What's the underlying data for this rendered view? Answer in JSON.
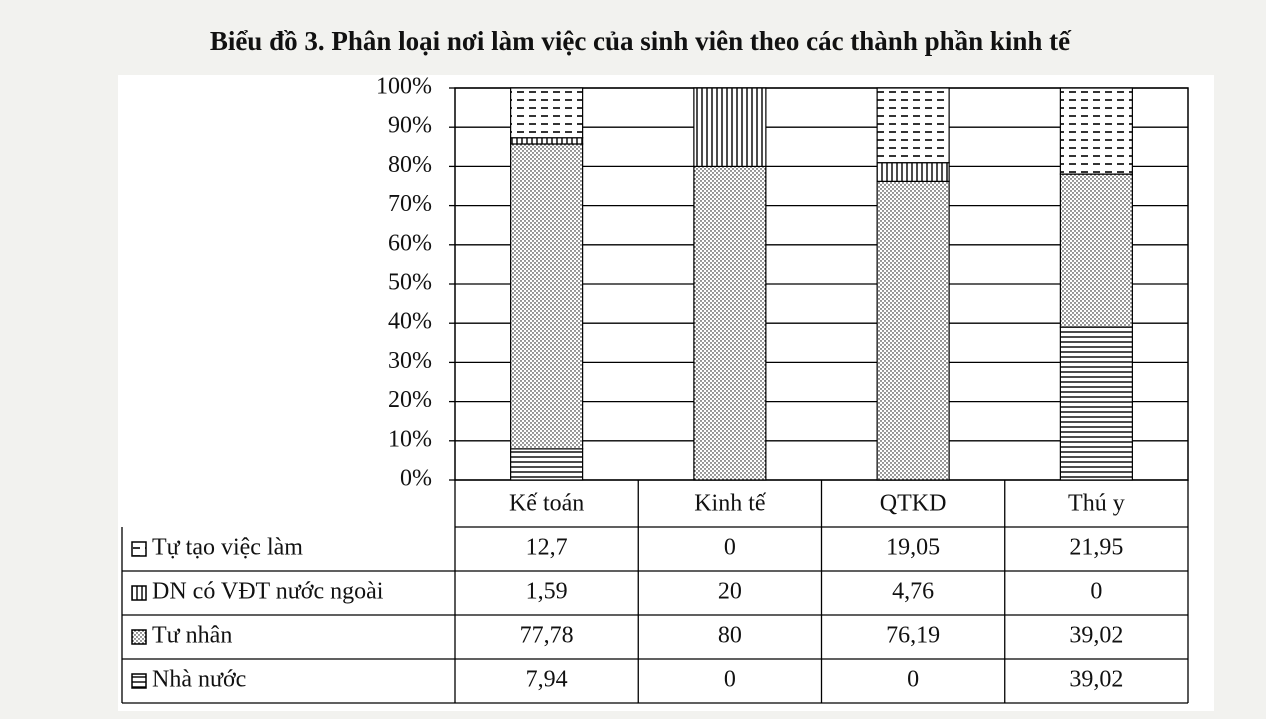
{
  "chart_data": {
    "type": "stacked_bar",
    "title": "Biểu đồ 3. Phân loại nơi làm việc của sinh viên theo các thành phần kinh tế",
    "categories": [
      "Kế toán",
      "Kinh tế",
      "QTKD",
      "Thú y"
    ],
    "series": [
      {
        "name": "Tự tạo việc làm",
        "color": "#000000",
        "values": [
          12.7,
          0,
          19.05,
          21.95
        ],
        "value_labels": [
          "12,7",
          "0",
          "19,05",
          "21,95"
        ]
      },
      {
        "name": "DN có VĐT nước ngoài",
        "color": "#000000",
        "values": [
          1.59,
          20,
          4.76,
          0
        ],
        "value_labels": [
          "1,59",
          "20",
          "4,76",
          "0"
        ]
      },
      {
        "name": "Tư nhân",
        "color": "#000000",
        "values": [
          77.78,
          80,
          76.19,
          39.02
        ],
        "value_labels": [
          "77,78",
          "80",
          "76,19",
          "39,02"
        ]
      },
      {
        "name": "Nhà nước",
        "color": "#000000",
        "values": [
          7.94,
          0,
          0,
          39.02
        ],
        "value_labels": [
          "7,94",
          "0",
          "0",
          "39,02"
        ]
      }
    ],
    "ylim": [
      0,
      100
    ],
    "yticks": [
      {
        "value": 0,
        "label": "0%"
      },
      {
        "value": 10,
        "label": "10%"
      },
      {
        "value": 20,
        "label": "20%"
      },
      {
        "value": 30,
        "label": "30%"
      },
      {
        "value": 40,
        "label": "40%"
      },
      {
        "value": 50,
        "label": "50%"
      },
      {
        "value": 60,
        "label": "60%"
      },
      {
        "value": 70,
        "label": "70%"
      },
      {
        "value": 80,
        "label": "80%"
      },
      {
        "value": 90,
        "label": "90%"
      },
      {
        "value": 100,
        "label": "100%"
      }
    ],
    "grid": true
  }
}
